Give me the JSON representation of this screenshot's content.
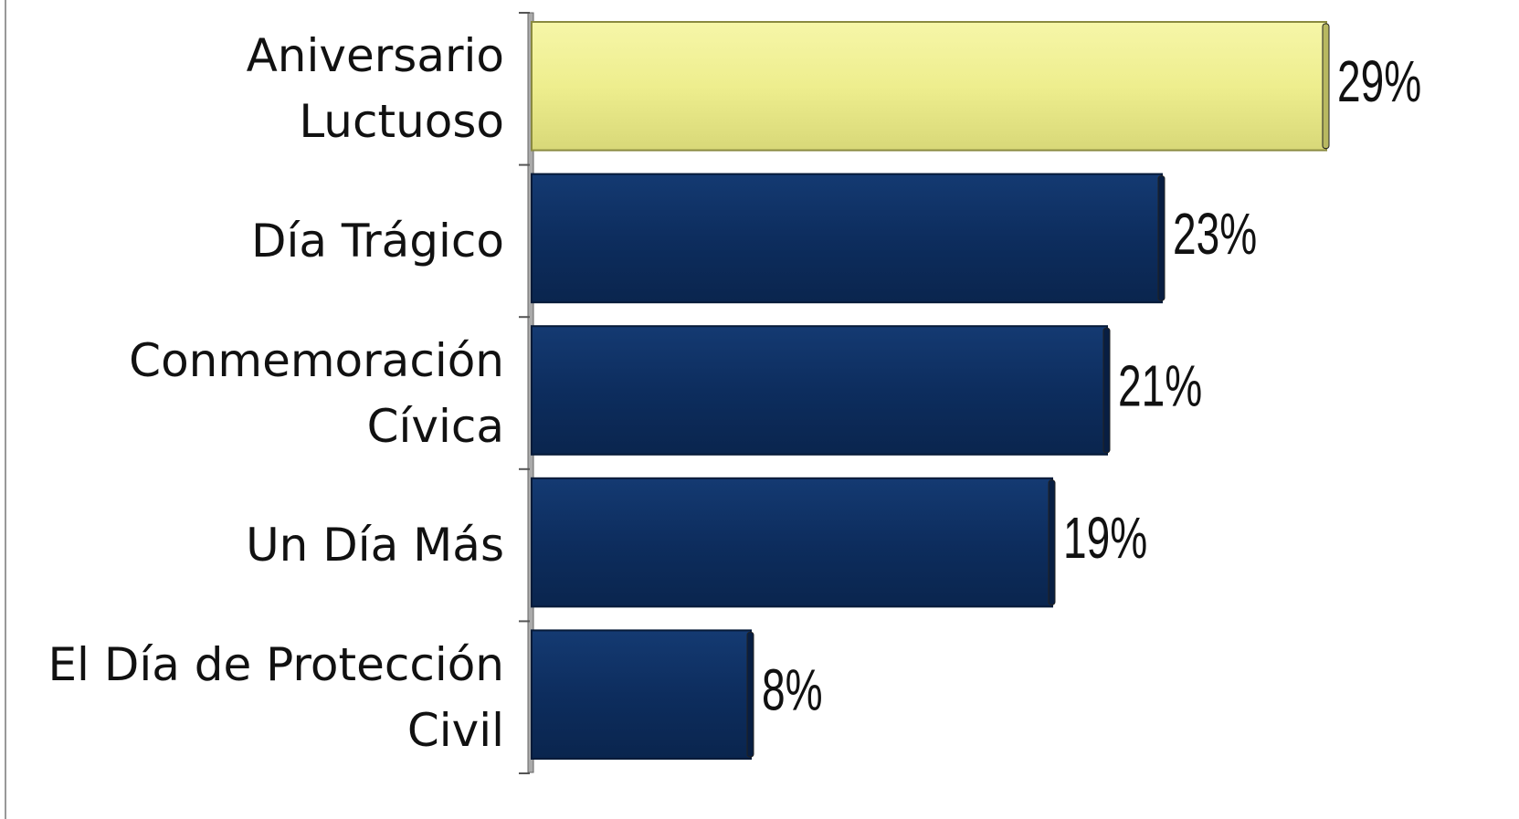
{
  "chart_data": {
    "type": "barh",
    "categories": [
      "Aniversario\nLuctuoso",
      "Día Trágico",
      "Conmemoración\nCívica",
      "Un Día Más",
      "El Día de Protección\nCivil"
    ],
    "values": [
      29,
      23,
      21,
      19,
      8
    ],
    "value_labels": [
      "29%",
      "23%",
      "21%",
      "19%",
      "8%"
    ],
    "colors": [
      "#eeee90",
      "#0d2d5e",
      "#0d2d5e",
      "#0d2d5e",
      "#0d2d5e"
    ]
  }
}
